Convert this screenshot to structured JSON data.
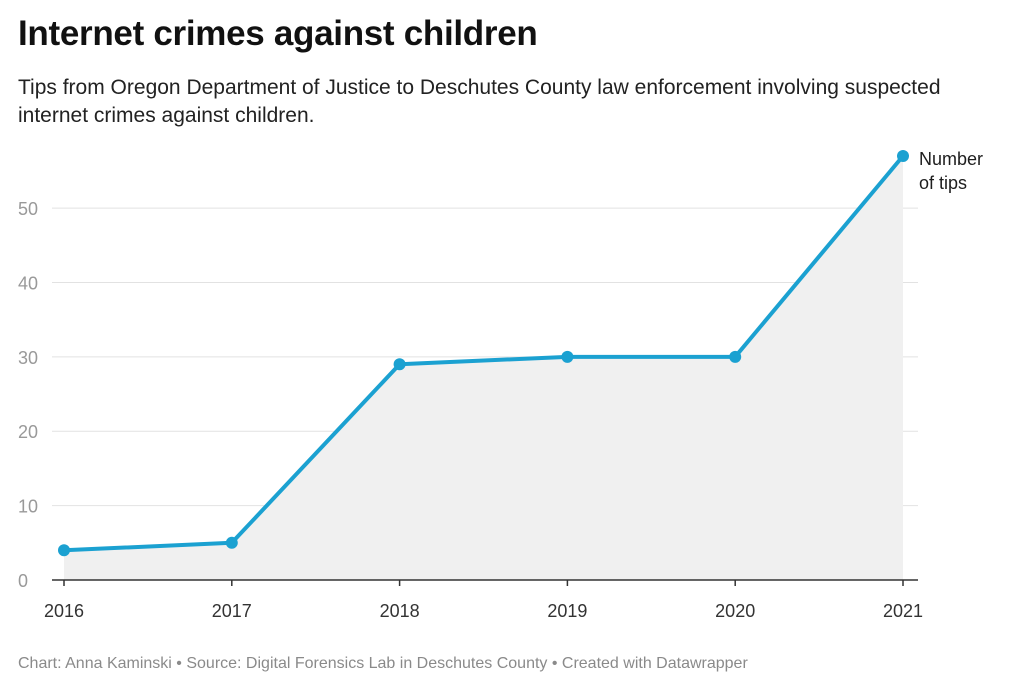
{
  "title": "Internet crimes against children",
  "subtitle": "Tips from Oregon Department of Justice to Deschutes County law enforcement involving suspected internet crimes against children.",
  "footer": "Chart: Anna Kaminski • Source: Digital Forensics Lab in Deschutes County • Created with Datawrapper",
  "colors": {
    "line": "#1ba1d1",
    "area": "#f0f0f0",
    "grid": "#e2e2e2",
    "axis": "#333333",
    "tick_label": "#999999",
    "x_tick_label": "#333333"
  },
  "chart_data": {
    "type": "area",
    "x": [
      "2016",
      "2017",
      "2018",
      "2019",
      "2020",
      "2021"
    ],
    "series": [
      {
        "name": "Number of tips",
        "values": [
          4,
          5,
          29,
          30,
          30,
          57
        ]
      }
    ],
    "series_label_lines": [
      "Number",
      "of tips"
    ],
    "yticks": [
      0,
      10,
      20,
      30,
      40,
      50
    ],
    "ylim": [
      0,
      57
    ],
    "grid": true,
    "xlabel": "",
    "ylabel": ""
  }
}
